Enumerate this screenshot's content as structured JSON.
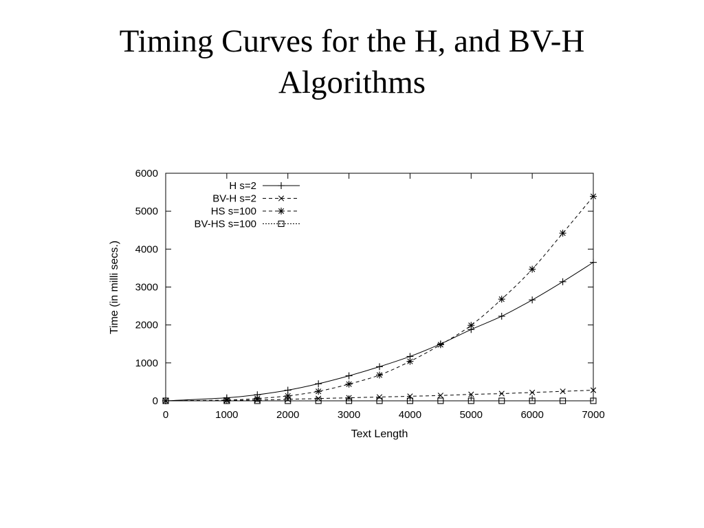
{
  "slide": {
    "title_line1": "Timing Curves for the H, and BV-H",
    "title_line2": "Algorithms"
  },
  "chart_data": {
    "type": "line",
    "title": "",
    "xlabel": "Text Length",
    "ylabel": "Time (in milli secs.)",
    "xlim": [
      0,
      7000
    ],
    "ylim": [
      0,
      6000
    ],
    "x_ticks": [
      0,
      1000,
      2000,
      3000,
      4000,
      5000,
      6000,
      7000
    ],
    "y_ticks": [
      0,
      1000,
      2000,
      3000,
      4000,
      5000,
      6000
    ],
    "grid": false,
    "legend_position": "top-left",
    "series": [
      {
        "name": "H s=2",
        "line_style": "solid",
        "marker": "plus",
        "x": [
          0,
          1000,
          1500,
          2000,
          2500,
          3000,
          3500,
          4000,
          4500,
          5000,
          5500,
          6000,
          6500,
          7000
        ],
        "y": [
          0,
          80,
          160,
          280,
          450,
          660,
          900,
          1170,
          1500,
          1880,
          2230,
          2660,
          3140,
          3650
        ]
      },
      {
        "name": "BV-H s=2",
        "line_style": "dashed",
        "marker": "cross",
        "x": [
          0,
          1000,
          1500,
          2000,
          2500,
          3000,
          3500,
          4000,
          4500,
          5000,
          5500,
          6000,
          6500,
          7000
        ],
        "y": [
          0,
          10,
          20,
          40,
          60,
          80,
          100,
          120,
          140,
          170,
          190,
          220,
          250,
          280
        ]
      },
      {
        "name": "HS s=100",
        "line_style": "dashed",
        "marker": "star",
        "x": [
          0,
          1000,
          1500,
          2000,
          2500,
          3000,
          3500,
          4000,
          4500,
          5000,
          5500,
          6000,
          6500,
          7000
        ],
        "y": [
          0,
          20,
          60,
          130,
          250,
          440,
          680,
          1040,
          1480,
          1990,
          2680,
          3470,
          4420,
          5390
        ]
      },
      {
        "name": "BV-HS s=100",
        "line_style": "dotted",
        "marker": "square",
        "x": [
          0,
          1000,
          1500,
          2000,
          2500,
          3000,
          3500,
          4000,
          4500,
          5000,
          5500,
          6000,
          6500,
          7000
        ],
        "y": [
          0,
          0,
          0,
          0,
          0,
          0,
          0,
          0,
          0,
          0,
          0,
          0,
          0,
          0
        ]
      }
    ]
  }
}
